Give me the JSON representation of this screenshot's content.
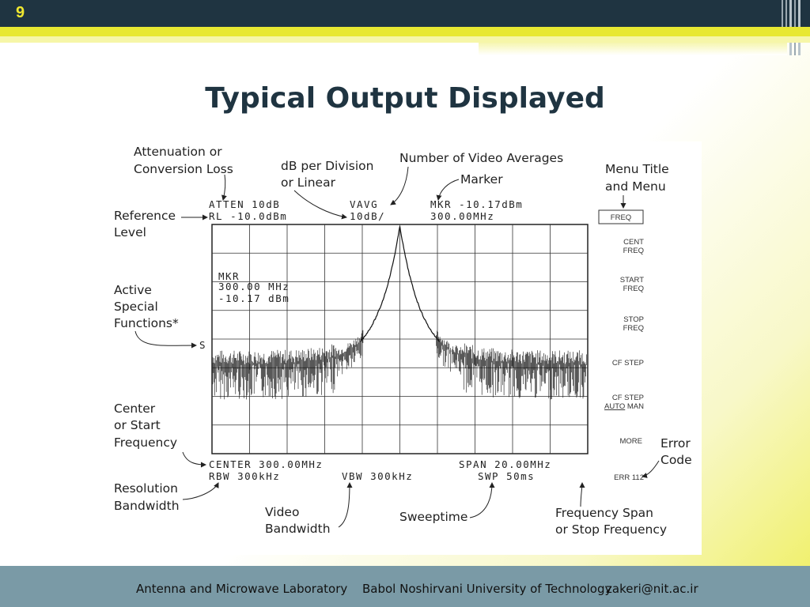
{
  "slide": {
    "number": "9",
    "title": "Typical Output Displayed"
  },
  "figure": {
    "callouts": {
      "attenuation": [
        "Attenuation or",
        "Conversion Loss"
      ],
      "db_per_division": [
        "dB per Division",
        "or Linear"
      ],
      "video_averages": "Number of Video Averages",
      "marker": "Marker",
      "menu_title": [
        "Menu Title",
        "and Menu"
      ],
      "reference_level": [
        "Reference",
        "Level"
      ],
      "active_special": [
        "Active",
        "Special",
        "Functions*"
      ],
      "center_freq": [
        "Center",
        "or Start",
        "Frequency"
      ],
      "error_code": [
        "Error",
        "Code"
      ],
      "resolution_bw": [
        "Resolution",
        "Bandwidth"
      ],
      "video_bw": [
        "Video",
        "Bandwidth"
      ],
      "sweeptime": "Sweeptime",
      "freq_span": [
        "Frequency Span",
        "or Stop Frequency"
      ]
    },
    "screen": {
      "atten": "ATTEN 10dB",
      "rl": "RL -10.0dBm",
      "vavg": "VAVG",
      "db_div": "10dB/",
      "mkr_top": "MKR -10.17dBm",
      "mkr_freq_top": "300.00MHz",
      "mkr_box": [
        "MKR",
        "300.00 MHz",
        "-10.17 dBm"
      ],
      "s_flag": "S",
      "center": "CENTER 300.00MHz",
      "span": "SPAN 20.00MHz",
      "rbw": "RBW 300kHz",
      "vbw": "VBW 300kHz",
      "swp": "SWP 50ms"
    },
    "softkeys": {
      "freq": "FREQ",
      "cent": [
        "CENT",
        "FREQ"
      ],
      "start": [
        "START",
        "FREQ"
      ],
      "stop": [
        "STOP",
        "FREQ"
      ],
      "cf_step": "CF STEP",
      "cf_step2": "CF STEP",
      "auto": "AUTO",
      "man": "MAN",
      "more": "MORE",
      "err": "ERR 112"
    }
  },
  "footer": {
    "lab": "Antenna and Microwave Laboratory",
    "university": "Babol Noshirvani University of Technology",
    "email": "zakeri@nit.ac.ir"
  }
}
